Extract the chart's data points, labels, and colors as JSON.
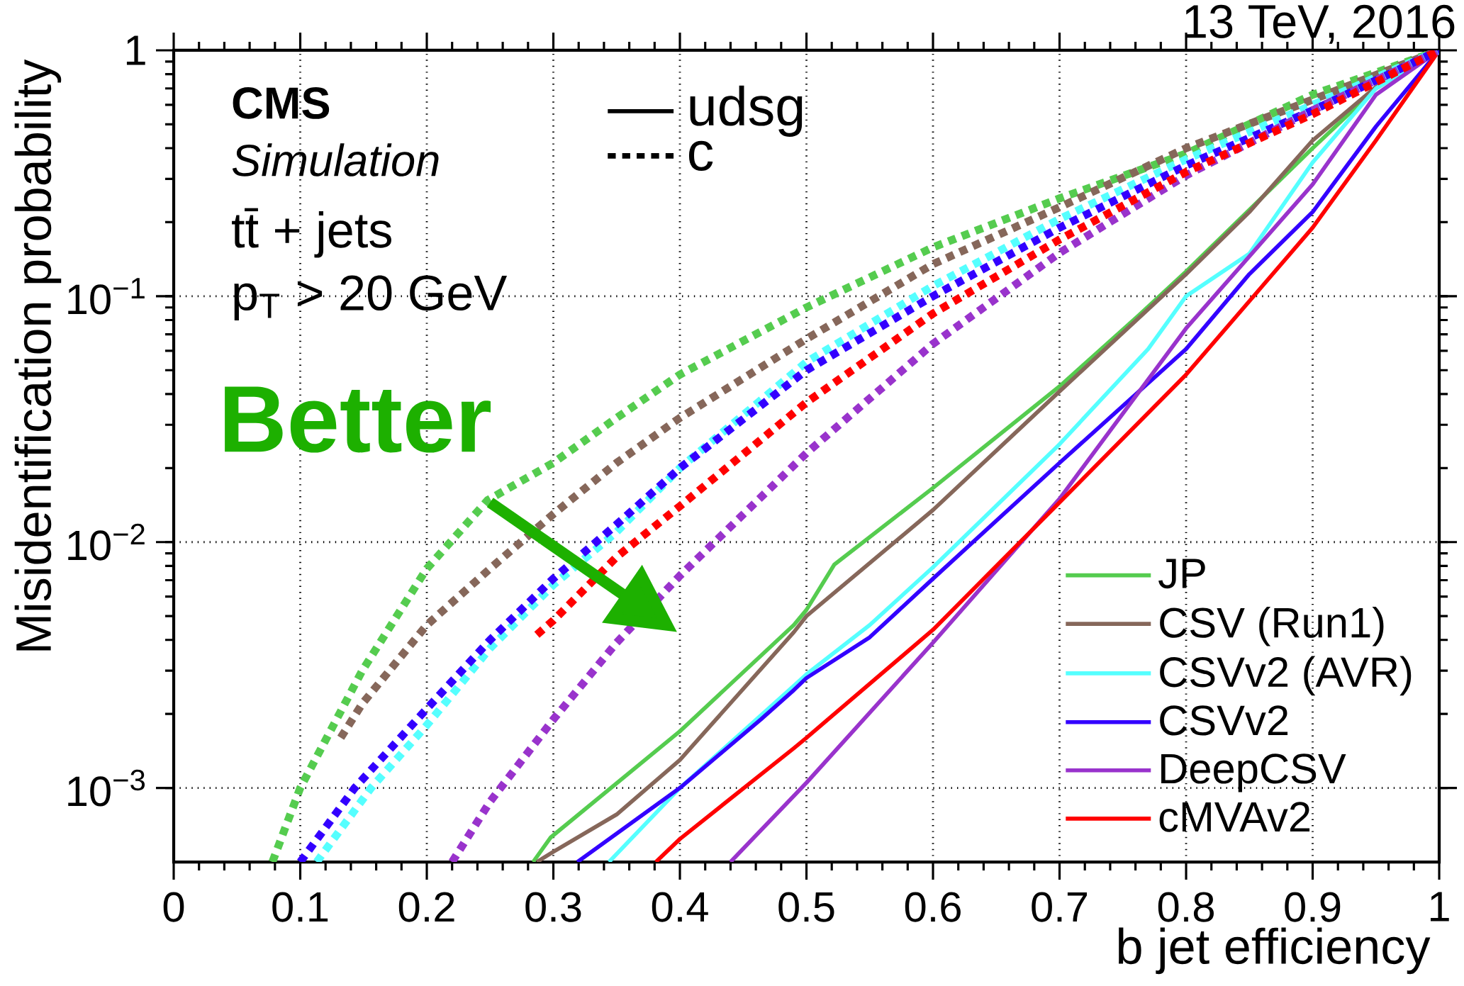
{
  "chart_data": {
    "type": "line",
    "xlabel": "b jet efficiency",
    "ylabel": "Misidentification probability",
    "annotations": [
      "CMS",
      "Simulation",
      "tt̄ + jets",
      "p$_{T}$ > 20 GeV",
      "udsg",
      "c",
      "Better",
      "13 TeV, 2016"
    ],
    "log": "y",
    "grid": true,
    "legend": "bottom right",
    "marker": "none",
    "xlim": [
      0,
      1
    ],
    "ylim": [
      0.0005,
      1
    ],
    "xticks": [
      0,
      0.1,
      0.2,
      0.3,
      0.4,
      0.5,
      0.6,
      0.7,
      0.8,
      0.9,
      1
    ],
    "yticks": [
      {
        "value": 0.001,
        "label": "10$^{−3}$"
      },
      {
        "value": 0.01,
        "label": "10$^{−2}$"
      },
      {
        "value": 0.1,
        "label": "10$^{−1}$"
      },
      1
    ],
    "series": [
      {
        "name": "JP",
        "color": "#55cc4f",
        "line_style": "solid",
        "x": [
          0.284,
          0.298,
          0.4,
          0.49,
          0.5,
          0.522,
          0.6,
          0.7,
          0.762,
          0.8,
          0.9,
          0.95,
          1.0
        ],
        "values": [
          0.0005,
          0.00063,
          0.0017,
          0.0046,
          0.0053,
          0.0081,
          0.0166,
          0.043,
          0.083,
          0.126,
          0.4,
          0.7,
          1.0
        ]
      },
      {
        "name": "CSV (Run1)",
        "color": "#86675a",
        "line_style": "solid",
        "x": [
          0.287,
          0.3,
          0.35,
          0.4,
          0.49,
          0.5,
          0.6,
          0.7,
          0.8,
          0.85,
          0.9,
          0.95,
          1.0
        ],
        "values": [
          0.0005,
          0.00055,
          0.00078,
          0.0013,
          0.0043,
          0.005,
          0.0135,
          0.041,
          0.123,
          0.22,
          0.43,
          0.71,
          1.0
        ]
      },
      {
        "name": "CSVv2 (AVR)",
        "color": "#55ffff",
        "line_style": "solid",
        "x": [
          0.344,
          0.4,
          0.49,
          0.5,
          0.55,
          0.6,
          0.7,
          0.77,
          0.8,
          0.85,
          0.9,
          0.95,
          1.0
        ],
        "values": [
          0.0005,
          0.001,
          0.0026,
          0.0029,
          0.0046,
          0.0079,
          0.025,
          0.061,
          0.1,
          0.149,
          0.35,
          0.7,
          1.0
        ]
      },
      {
        "name": "CSVv2",
        "color": "#3300ff",
        "line_style": "solid",
        "x": [
          0.319,
          0.4,
          0.464,
          0.49,
          0.5,
          0.55,
          0.6,
          0.7,
          0.8,
          0.85,
          0.9,
          0.95,
          1.0
        ],
        "values": [
          0.0005,
          0.001,
          0.0019,
          0.0025,
          0.0028,
          0.0041,
          0.0071,
          0.021,
          0.061,
          0.123,
          0.22,
          0.49,
          1.0
        ]
      },
      {
        "name": "DeepCSV",
        "color": "#9933cc",
        "line_style": "solid",
        "x": [
          0.44,
          0.5,
          0.6,
          0.7,
          0.8,
          0.9,
          0.95,
          1.0
        ],
        "values": [
          0.0005,
          0.00105,
          0.0039,
          0.015,
          0.074,
          0.285,
          0.66,
          1.0
        ]
      },
      {
        "name": "cMVAv2",
        "color": "#ff0000",
        "line_style": "solid",
        "x": [
          0.381,
          0.4,
          0.49,
          0.5,
          0.6,
          0.7,
          0.8,
          0.9,
          0.95,
          1.0
        ],
        "values": [
          0.0005,
          0.00062,
          0.00145,
          0.0016,
          0.0044,
          0.0145,
          0.048,
          0.19,
          0.43,
          1.0
        ]
      },
      {
        "color": "#55cc4f",
        "line_style": "dashed",
        "x": [
          0.078,
          0.1,
          0.149,
          0.2,
          0.248,
          0.3,
          0.35,
          0.4,
          0.5,
          0.6,
          0.7,
          0.8,
          0.9,
          1.0
        ],
        "values": [
          0.0005,
          0.001,
          0.003,
          0.0078,
          0.0148,
          0.021,
          0.032,
          0.048,
          0.09,
          0.158,
          0.25,
          0.38,
          0.66,
          1.0
        ]
      },
      {
        "color": "#86675a",
        "line_style": "dashed",
        "x": [
          0.132,
          0.149,
          0.2,
          0.25,
          0.3,
          0.35,
          0.4,
          0.5,
          0.6,
          0.7,
          0.8,
          0.9,
          1.0
        ],
        "values": [
          0.0016,
          0.0022,
          0.0046,
          0.0078,
          0.013,
          0.021,
          0.032,
          0.067,
          0.135,
          0.23,
          0.4,
          0.63,
          1.0
        ]
      },
      {
        "color": "#55ffff",
        "line_style": "dashed",
        "x": [
          0.113,
          0.156,
          0.2,
          0.25,
          0.3,
          0.35,
          0.4,
          0.5,
          0.6,
          0.7,
          0.8,
          0.9,
          1.0
        ],
        "values": [
          0.0005,
          0.001,
          0.0018,
          0.0037,
          0.0067,
          0.011,
          0.02,
          0.054,
          0.11,
          0.206,
          0.36,
          0.6,
          1.0
        ]
      },
      {
        "color": "#3300ff",
        "line_style": "dashed",
        "x": [
          0.1,
          0.143,
          0.2,
          0.25,
          0.3,
          0.35,
          0.4,
          0.5,
          0.6,
          0.7,
          0.8,
          0.9,
          1.0
        ],
        "values": [
          0.0005,
          0.001,
          0.0021,
          0.004,
          0.0071,
          0.0118,
          0.02,
          0.05,
          0.1,
          0.19,
          0.34,
          0.57,
          1.0
        ]
      },
      {
        "color": "#9933cc",
        "line_style": "dashed",
        "x": [
          0.22,
          0.25,
          0.3,
          0.35,
          0.4,
          0.5,
          0.6,
          0.7,
          0.8,
          0.9,
          1.0
        ],
        "values": [
          0.0005,
          0.00088,
          0.0019,
          0.0039,
          0.0073,
          0.023,
          0.064,
          0.15,
          0.31,
          0.57,
          1.0
        ]
      },
      {
        "color": "#ff0000",
        "line_style": "dashed",
        "x": [
          0.287,
          0.3,
          0.35,
          0.4,
          0.5,
          0.6,
          0.7,
          0.8,
          0.9,
          1.0
        ],
        "values": [
          0.0042,
          0.0048,
          0.0087,
          0.014,
          0.037,
          0.085,
          0.17,
          0.32,
          0.55,
          1.0
        ]
      }
    ]
  }
}
